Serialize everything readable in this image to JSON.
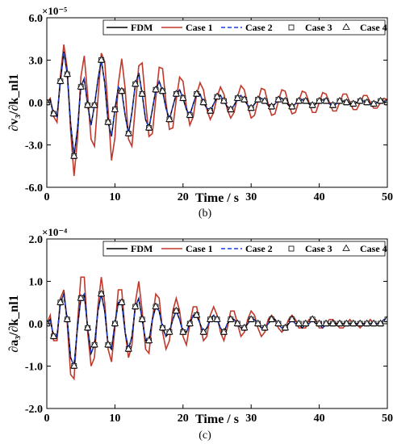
{
  "chart_data": [
    {
      "type": "line",
      "panel_label": "(b)",
      "xlabel": "Time / s",
      "ylabel": "∂v₃/∂k_nl1",
      "exponent": "×10⁻⁵",
      "xlim": [
        0,
        50
      ],
      "ylim": [
        -6.0,
        6.0
      ],
      "x_ticks": [
        "0",
        "10",
        "20",
        "30",
        "40",
        "50"
      ],
      "y_ticks": [
        "-6.0",
        "-3.0",
        "0.0",
        "3.0",
        "6.0"
      ],
      "grid": false,
      "legend_position": "top-right",
      "legend": [
        "FDM",
        "Case 1",
        "Case 2",
        "Case 3",
        "Case 4"
      ],
      "series_styles": [
        {
          "name": "FDM",
          "color": "#000000",
          "style": "solid"
        },
        {
          "name": "Case 1",
          "color": "#c0392b",
          "style": "solid"
        },
        {
          "name": "Case 2",
          "color": "#1f3fd1",
          "style": "dashed"
        },
        {
          "name": "Case 3",
          "color": "#000000",
          "style": "square-marker"
        },
        {
          "name": "Case 4",
          "color": "#000000",
          "style": "triangle-marker"
        }
      ],
      "reference": {
        "x": [
          0,
          0.5,
          1.0,
          1.5,
          2.0,
          2.5,
          3.0,
          3.5,
          4.0,
          4.5,
          5.0,
          5.5,
          6.0,
          6.5,
          7.0,
          7.5,
          8.0,
          8.5,
          9.0,
          9.5,
          10.0,
          10.5,
          11.0,
          11.5,
          12.0,
          12.5,
          13.0,
          13.5,
          14.0,
          14.5,
          15.0,
          15.5,
          16.0,
          16.5,
          17.0,
          17.5,
          18.0,
          18.5,
          19.0,
          19.5,
          20.0,
          20.5,
          21.0,
          21.5,
          22.0,
          22.5,
          23.0,
          23.5,
          24.0,
          24.5,
          25.0,
          25.5,
          26.0,
          26.5,
          27.0,
          27.5,
          28.0,
          28.5,
          29.0,
          29.5,
          30.0,
          30.5,
          31.0,
          31.5,
          32.0,
          32.5,
          33.0,
          33.5,
          34.0,
          34.5,
          35.0,
          35.5,
          36.0,
          36.5,
          37.0,
          37.5,
          38.0,
          38.5,
          39.0,
          39.5,
          40.0,
          40.5,
          41.0,
          41.5,
          42.0,
          42.5,
          43.0,
          43.5,
          44.0,
          44.5,
          45.0,
          45.5,
          46.0,
          46.5,
          47.0,
          47.5,
          48.0,
          48.5,
          49.0,
          49.5,
          50.0
        ],
        "y": [
          0.0,
          0.2,
          -0.8,
          -1.0,
          1.5,
          3.6,
          2.0,
          -1.5,
          -3.8,
          -1.9,
          1.1,
          1.7,
          -0.2,
          -1.6,
          -0.2,
          1.6,
          3.0,
          1.4,
          -1.4,
          -2.4,
          -0.5,
          1.1,
          0.8,
          -0.9,
          -2.2,
          -0.7,
          1.3,
          2.1,
          0.6,
          -1.2,
          -1.8,
          -0.5,
          0.9,
          1.5,
          0.8,
          -0.4,
          -1.2,
          -0.3,
          0.6,
          0.9,
          0.3,
          -0.5,
          -0.9,
          -0.1,
          0.6,
          0.6,
          0.0,
          -0.4,
          -0.6,
          -0.1,
          0.4,
          0.5,
          0.1,
          -0.3,
          -0.5,
          -0.2,
          0.3,
          0.5,
          0.2,
          -0.2,
          -0.4,
          -0.1,
          0.2,
          0.3,
          0.1,
          -0.2,
          -0.3,
          -0.1,
          0.2,
          0.3,
          0.1,
          -0.2,
          -0.3,
          -0.1,
          0.1,
          0.2,
          0.1,
          -0.1,
          -0.2,
          -0.1,
          0.1,
          0.2,
          0.1,
          -0.1,
          -0.2,
          -0.1,
          0.1,
          0.1,
          0.0,
          -0.1,
          -0.1,
          0.0,
          0.1,
          0.1,
          0.0,
          -0.1,
          -0.1,
          0.0,
          0.1,
          0.1,
          0.0
        ]
      },
      "case1": {
        "x": [
          0,
          0.5,
          1.0,
          1.5,
          2.0,
          2.5,
          3.0,
          3.5,
          4.0,
          4.5,
          5.0,
          5.5,
          6.0,
          6.5,
          7.0,
          7.5,
          8.0,
          8.5,
          9.0,
          9.5,
          10.0,
          10.5,
          11.0,
          11.5,
          12.0,
          12.5,
          13.0,
          13.5,
          14.0,
          14.5,
          15.0,
          15.5,
          16.0,
          16.5,
          17.0,
          17.5,
          18.0,
          18.5,
          19.0,
          19.5,
          20.0,
          20.5,
          21.0,
          21.5,
          22.0,
          22.5,
          23.0,
          23.5,
          24.0,
          24.5,
          25.0,
          25.5,
          26.0,
          26.5,
          27.0,
          27.5,
          28.0,
          28.5,
          29.0,
          29.5,
          30.0,
          30.5,
          31.0,
          31.5,
          32.0,
          32.5,
          33.0,
          33.5,
          34.0,
          34.5,
          35.0,
          35.5,
          36.0,
          36.5,
          37.0,
          37.5,
          38.0,
          38.5,
          39.0,
          39.5,
          40.0,
          40.5,
          41.0,
          41.5,
          42.0,
          42.5,
          43.0,
          43.5,
          44.0,
          44.5,
          45.0,
          45.5,
          46.0,
          46.5,
          47.0,
          47.5,
          48.0,
          48.5,
          49.0,
          49.5,
          50.0
        ],
        "y": [
          0.0,
          0.3,
          -1.0,
          -1.4,
          1.9,
          4.1,
          2.4,
          -2.0,
          -5.2,
          -2.6,
          1.8,
          3.3,
          0.5,
          -2.6,
          -3.1,
          0.2,
          3.5,
          2.9,
          -0.5,
          -4.1,
          -2.5,
          1.3,
          3.1,
          1.0,
          -2.6,
          -3.1,
          -0.3,
          2.6,
          2.8,
          0.1,
          -2.4,
          -2.2,
          0.3,
          2.5,
          2.4,
          0.0,
          -1.9,
          -1.8,
          0.2,
          1.8,
          1.5,
          -0.3,
          -1.6,
          -1.0,
          0.6,
          1.4,
          0.9,
          -0.5,
          -1.2,
          -0.7,
          0.4,
          1.1,
          0.6,
          -0.5,
          -1.1,
          -0.7,
          0.4,
          1.2,
          0.9,
          -0.2,
          -1.1,
          -0.9,
          0.1,
          1.0,
          0.9,
          -0.1,
          -0.9,
          -0.8,
          0.1,
          0.9,
          0.8,
          -0.1,
          -0.8,
          -0.7,
          0.1,
          0.8,
          0.7,
          0.0,
          -0.7,
          -0.7,
          0.0,
          0.7,
          0.6,
          0.0,
          -0.6,
          -0.6,
          0.0,
          0.6,
          0.6,
          0.0,
          -0.5,
          -0.5,
          0.0,
          0.5,
          0.5,
          0.0,
          -0.4,
          -0.4,
          0.0,
          0.3,
          0.2
        ]
      }
    },
    {
      "type": "line",
      "panel_label": "(c)",
      "xlabel": "Time / s",
      "ylabel": "∂a₃/∂k_nl1",
      "exponent": "×10⁻⁴",
      "xlim": [
        0,
        50
      ],
      "ylim": [
        -2.0,
        2.0
      ],
      "x_ticks": [
        "0",
        "10",
        "20",
        "30",
        "40",
        "50"
      ],
      "y_ticks": [
        "-2.0",
        "-1.0",
        "0.0",
        "1.0",
        "2.0"
      ],
      "grid": false,
      "legend_position": "top-right",
      "legend": [
        "FDM",
        "Case 1",
        "Case 2",
        "Case 3",
        "Case 4"
      ],
      "series_styles": [
        {
          "name": "FDM",
          "color": "#000000",
          "style": "solid"
        },
        {
          "name": "Case 1",
          "color": "#c0392b",
          "style": "solid"
        },
        {
          "name": "Case 2",
          "color": "#1f3fd1",
          "style": "dashed"
        },
        {
          "name": "Case 3",
          "color": "#000000",
          "style": "square-marker"
        },
        {
          "name": "Case 4",
          "color": "#000000",
          "style": "triangle-marker"
        }
      ],
      "reference": {
        "x": [
          0,
          0.5,
          1.0,
          1.5,
          2.0,
          2.5,
          3.0,
          3.5,
          4.0,
          4.5,
          5.0,
          5.5,
          6.0,
          6.5,
          7.0,
          7.5,
          8.0,
          8.5,
          9.0,
          9.5,
          10.0,
          10.5,
          11.0,
          11.5,
          12.0,
          12.5,
          13.0,
          13.5,
          14.0,
          14.5,
          15.0,
          15.5,
          16.0,
          16.5,
          17.0,
          17.5,
          18.0,
          18.5,
          19.0,
          19.5,
          20.0,
          20.5,
          21.0,
          21.5,
          22.0,
          22.5,
          23.0,
          23.5,
          24.0,
          24.5,
          25.0,
          25.5,
          26.0,
          26.5,
          27.0,
          27.5,
          28.0,
          28.5,
          29.0,
          29.5,
          30.0,
          30.5,
          31.0,
          31.5,
          32.0,
          32.5,
          33.0,
          33.5,
          34.0,
          34.5,
          35.0,
          35.5,
          36.0,
          36.5,
          37.0,
          37.5,
          38.0,
          38.5,
          39.0,
          39.5,
          40.0,
          40.5,
          41.0,
          41.5,
          42.0,
          42.5,
          43.0,
          43.5,
          44.0,
          44.5,
          45.0,
          45.5,
          46.0,
          46.5,
          47.0,
          47.5,
          48.0,
          48.5,
          49.0,
          49.5,
          50.0
        ],
        "y": [
          0.0,
          0.1,
          -0.3,
          -0.3,
          0.5,
          0.7,
          0.1,
          -0.8,
          -1.0,
          -0.1,
          0.6,
          0.7,
          -0.1,
          -0.7,
          -0.5,
          0.3,
          0.7,
          0.3,
          -0.5,
          -0.6,
          0.0,
          0.5,
          0.5,
          -0.2,
          -0.6,
          -0.3,
          0.4,
          0.6,
          0.1,
          -0.4,
          -0.4,
          0.1,
          0.4,
          0.3,
          -0.1,
          -0.3,
          -0.2,
          0.1,
          0.3,
          0.1,
          -0.2,
          -0.2,
          0.0,
          0.2,
          0.2,
          0.0,
          -0.2,
          -0.1,
          0.1,
          0.2,
          0.1,
          -0.1,
          -0.2,
          0.0,
          0.1,
          0.1,
          0.0,
          -0.1,
          -0.1,
          0.0,
          0.1,
          0.1,
          0.0,
          -0.1,
          -0.1,
          0.0,
          0.1,
          0.1,
          0.0,
          -0.1,
          -0.1,
          0.0,
          0.1,
          0.0,
          0.0,
          -0.1,
          0.0,
          0.0,
          0.1,
          0.0,
          0.0,
          -0.1,
          0.0,
          0.0,
          0.0,
          0.0,
          0.0,
          0.0,
          0.0,
          0.0,
          0.0,
          0.0,
          0.0,
          0.0,
          0.0,
          0.0,
          0.0,
          0.0,
          0.0,
          0.1,
          0.1
        ]
      },
      "case1": {
        "x": [
          0,
          0.5,
          1.0,
          1.5,
          2.0,
          2.5,
          3.0,
          3.5,
          4.0,
          4.5,
          5.0,
          5.5,
          6.0,
          6.5,
          7.0,
          7.5,
          8.0,
          8.5,
          9.0,
          9.5,
          10.0,
          10.5,
          11.0,
          11.5,
          12.0,
          12.5,
          13.0,
          13.5,
          14.0,
          14.5,
          15.0,
          15.5,
          16.0,
          16.5,
          17.0,
          17.5,
          18.0,
          18.5,
          19.0,
          19.5,
          20.0,
          20.5,
          21.0,
          21.5,
          22.0,
          22.5,
          23.0,
          23.5,
          24.0,
          24.5,
          25.0,
          25.5,
          26.0,
          26.5,
          27.0,
          27.5,
          28.0,
          28.5,
          29.0,
          29.5,
          30.0,
          30.5,
          31.0,
          31.5,
          32.0,
          32.5,
          33.0,
          33.5,
          34.0,
          34.5,
          35.0,
          35.5,
          36.0,
          36.5,
          37.0,
          37.5,
          38.0,
          38.5,
          39.0,
          39.5,
          40.0,
          40.5,
          41.0,
          41.5,
          42.0,
          42.5,
          43.0,
          43.5,
          44.0,
          44.5,
          45.0,
          45.5,
          46.0,
          46.5,
          47.0,
          47.5,
          48.0,
          48.5,
          49.0,
          49.5,
          50.0
        ],
        "y": [
          0.0,
          0.2,
          -0.4,
          -0.4,
          0.6,
          0.8,
          0.0,
          -1.2,
          -1.3,
          0.0,
          1.1,
          1.1,
          -0.2,
          -1.0,
          -0.8,
          0.4,
          1.1,
          0.5,
          -0.6,
          -0.9,
          -0.1,
          0.8,
          0.8,
          -0.2,
          -0.8,
          -0.5,
          0.5,
          1.0,
          0.3,
          -0.6,
          -0.7,
          0.1,
          0.7,
          0.6,
          -0.2,
          -0.6,
          -0.4,
          0.3,
          0.6,
          0.3,
          -0.3,
          -0.5,
          0.0,
          0.4,
          0.4,
          0.0,
          -0.4,
          -0.3,
          0.2,
          0.4,
          0.2,
          -0.2,
          -0.4,
          -0.1,
          0.3,
          0.3,
          0.0,
          -0.3,
          -0.2,
          0.1,
          0.3,
          0.2,
          -0.1,
          -0.3,
          -0.2,
          0.1,
          0.2,
          0.1,
          -0.1,
          -0.2,
          -0.1,
          0.1,
          0.2,
          0.1,
          -0.1,
          -0.1,
          -0.1,
          0.1,
          0.1,
          0.1,
          -0.1,
          -0.1,
          0.0,
          0.1,
          0.1,
          0.0,
          -0.1,
          -0.1,
          0.0,
          0.1,
          0.0,
          0.0,
          -0.1,
          0.0,
          0.0,
          0.1,
          0.0,
          0.0,
          0.0,
          0.1,
          0.1
        ]
      }
    }
  ]
}
